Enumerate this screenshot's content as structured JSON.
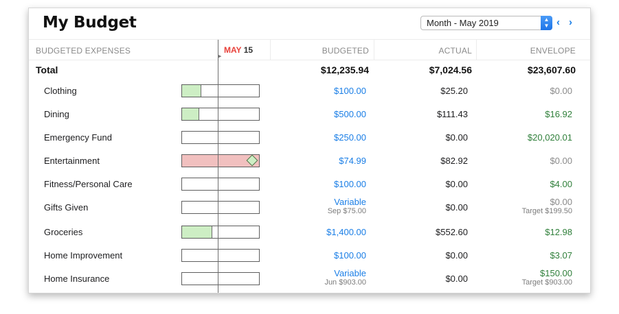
{
  "title": "My Budget",
  "period": {
    "selected": "Month - May 2019"
  },
  "nav": {
    "prev": "‹",
    "next": "›"
  },
  "today": {
    "month": "MAY",
    "day": "15"
  },
  "columns": {
    "expenses": "BUDGETED EXPENSES",
    "budgeted": "BUDGETED",
    "actual": "ACTUAL",
    "envelope": "ENVELOPE"
  },
  "total": {
    "label": "Total",
    "budgeted": "$12,235.94",
    "actual": "$7,024.56",
    "envelope": "$23,607.60"
  },
  "colors": {
    "accent": "#1a7ee6",
    "today_red": "#e8413a",
    "positive": "#2f7f3a",
    "under_fill": "#cdeec4",
    "over_fill": "#f1c0bf"
  },
  "rows": [
    {
      "name": "Clothing",
      "spent_fraction": 0.25,
      "budgeted": "$100.00",
      "budgeted_sub": "",
      "actual": "$25.20",
      "envelope": "$0.00",
      "envelope_sub": "",
      "envelope_status": "zero",
      "over": false
    },
    {
      "name": "Dining",
      "spent_fraction": 0.22,
      "budgeted": "$500.00",
      "budgeted_sub": "",
      "actual": "$111.43",
      "envelope": "$16.92",
      "envelope_sub": "",
      "envelope_status": "positive",
      "over": false
    },
    {
      "name": "Emergency Fund",
      "spent_fraction": 0,
      "budgeted": "$250.00",
      "budgeted_sub": "",
      "actual": "$0.00",
      "envelope": "$20,020.01",
      "envelope_sub": "",
      "envelope_status": "positive",
      "over": false
    },
    {
      "name": "Entertainment",
      "spent_fraction": 1.0,
      "budgeted": "$74.99",
      "budgeted_sub": "",
      "actual": "$82.92",
      "envelope": "$0.00",
      "envelope_sub": "",
      "envelope_status": "zero",
      "over": true
    },
    {
      "name": "Fitness/Personal Care",
      "spent_fraction": 0,
      "budgeted": "$100.00",
      "budgeted_sub": "",
      "actual": "$0.00",
      "envelope": "$4.00",
      "envelope_sub": "",
      "envelope_status": "positive",
      "over": false
    },
    {
      "name": "Gifts Given",
      "spent_fraction": 0,
      "budgeted": "Variable",
      "budgeted_sub": "Sep $75.00",
      "actual": "$0.00",
      "envelope": "$0.00",
      "envelope_sub": "Target $199.50",
      "envelope_status": "zero",
      "over": false
    },
    {
      "name": "Groceries",
      "spent_fraction": 0.39,
      "budgeted": "$1,400.00",
      "budgeted_sub": "",
      "actual": "$552.60",
      "envelope": "$12.98",
      "envelope_sub": "",
      "envelope_status": "positive",
      "over": false
    },
    {
      "name": "Home Improvement",
      "spent_fraction": 0,
      "budgeted": "$100.00",
      "budgeted_sub": "",
      "actual": "$0.00",
      "envelope": "$3.07",
      "envelope_sub": "",
      "envelope_status": "positive",
      "over": false
    },
    {
      "name": "Home Insurance",
      "spent_fraction": 0,
      "budgeted": "Variable",
      "budgeted_sub": "Jun $903.00",
      "actual": "$0.00",
      "envelope": "$150.00",
      "envelope_sub": "Target $903.00",
      "envelope_status": "positive",
      "over": false
    }
  ]
}
